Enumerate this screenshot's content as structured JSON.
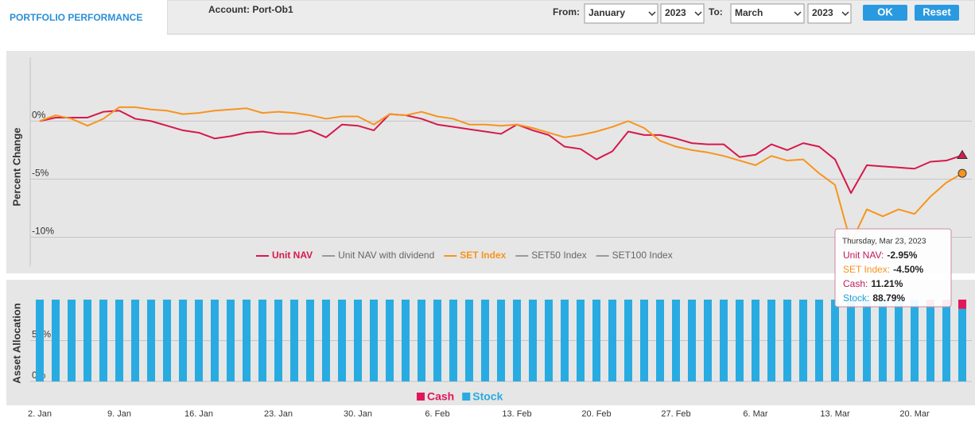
{
  "header": {
    "tab": "PORTFOLIO PERFORMANCE",
    "account": "Account: Port-Ob1",
    "from_label": "From:",
    "from_month": "January",
    "from_year": "2023",
    "to_label": "To:",
    "to_month": "March",
    "to_year": "2023",
    "ok": "OK",
    "reset": "Reset"
  },
  "chart_data": [
    {
      "type": "line",
      "y_label": "Percent Change",
      "ylim": [
        -12.5,
        5.5
      ],
      "yticks": [
        {
          "value": -10,
          "label": "-10%"
        },
        {
          "value": -5,
          "label": "-5%"
        },
        {
          "value": 0,
          "label": "0%"
        }
      ],
      "grid": true,
      "series": [
        {
          "name": "Unit NAV",
          "color": "#d6194b",
          "marker": "triangle",
          "values": [
            0,
            0.3,
            0.3,
            0.3,
            0.8,
            0.9,
            0.2,
            0.0,
            -0.4,
            -0.8,
            -1.0,
            -1.5,
            -1.3,
            -1.0,
            -0.9,
            -1.1,
            -1.1,
            -0.8,
            -1.4,
            -0.3,
            -0.4,
            -0.8,
            0.6,
            0.5,
            0.2,
            -0.3,
            -0.5,
            -0.7,
            -0.9,
            -1.1,
            -0.3,
            -0.8,
            -1.2,
            -2.2,
            -2.4,
            -3.3,
            -2.6,
            -0.9,
            -1.2,
            -1.2,
            -1.5,
            -1.9,
            -2.0,
            -2.0,
            -3.1,
            -2.9,
            -2.0,
            -2.5,
            -1.9,
            -2.2,
            -3.3,
            -6.2,
            -3.8,
            -3.9,
            -4.0,
            -4.1,
            -3.5,
            -3.4,
            -2.95
          ]
        },
        {
          "name": "Unit NAV with dividend",
          "color": "#999999",
          "hidden": true
        },
        {
          "name": "SET Index",
          "color": "#f7941d",
          "marker": "circle",
          "values": [
            0,
            0.5,
            0.2,
            -0.4,
            0.2,
            1.2,
            1.2,
            1.0,
            0.9,
            0.6,
            0.7,
            0.9,
            1.0,
            1.1,
            0.7,
            0.8,
            0.7,
            0.5,
            0.2,
            0.4,
            0.4,
            -0.3,
            0.6,
            0.5,
            0.8,
            0.4,
            0.2,
            -0.3,
            -0.3,
            -0.4,
            -0.3,
            -0.6,
            -1.0,
            -1.4,
            -1.2,
            -0.9,
            -0.5,
            0.0,
            -0.6,
            -1.7,
            -2.2,
            -2.5,
            -2.7,
            -3.0,
            -3.4,
            -3.8,
            -3.0,
            -3.4,
            -3.3,
            -4.5,
            -5.5,
            -10.5,
            -7.6,
            -8.2,
            -7.6,
            -8.0,
            -6.5,
            -5.3,
            -4.5
          ]
        },
        {
          "name": "SET50 Index",
          "color": "#999999",
          "hidden": true
        },
        {
          "name": "SET100 Index",
          "color": "#999999",
          "hidden": true
        }
      ]
    },
    {
      "type": "stacked_bar",
      "y_label": "Asset Allocation",
      "ylim": [
        0,
        100
      ],
      "yticks": [
        {
          "value": 0,
          "label": "0%"
        },
        {
          "value": 50,
          "label": "50%"
        }
      ],
      "categories": [
        "2. Jan",
        null,
        null,
        null,
        null,
        "9. Jan",
        null,
        null,
        null,
        null,
        "16. Jan",
        null,
        null,
        null,
        null,
        "23. Jan",
        null,
        null,
        null,
        null,
        "30. Jan",
        null,
        null,
        null,
        null,
        "6. Feb",
        null,
        null,
        null,
        null,
        "13. Feb",
        null,
        null,
        null,
        null,
        "20. Feb",
        null,
        null,
        null,
        null,
        "27. Feb",
        null,
        null,
        null,
        null,
        "6. Mar",
        null,
        null,
        null,
        null,
        "13. Mar",
        null,
        null,
        null,
        null,
        "20. Mar",
        null,
        null,
        null
      ],
      "series": [
        {
          "name": "Cash",
          "color": "#e0175a",
          "values": [
            0,
            0,
            0,
            0,
            0,
            0,
            0,
            0,
            0,
            0,
            0,
            0,
            0,
            0,
            0,
            0,
            0,
            0,
            0,
            0,
            0,
            0,
            0,
            0,
            0,
            0,
            0,
            0,
            0,
            0,
            0,
            0,
            0,
            0,
            0,
            0,
            0,
            0,
            0,
            0,
            0,
            0,
            0,
            0,
            0,
            0,
            0,
            0,
            0,
            0,
            0,
            0,
            0,
            0,
            0,
            0,
            9,
            9,
            11.21
          ]
        },
        {
          "name": "Stock",
          "color": "#29abe2",
          "values": [
            100,
            100,
            100,
            100,
            100,
            100,
            100,
            100,
            100,
            100,
            100,
            100,
            100,
            100,
            100,
            100,
            100,
            100,
            100,
            100,
            100,
            100,
            100,
            100,
            100,
            100,
            100,
            100,
            100,
            100,
            100,
            100,
            100,
            100,
            100,
            100,
            100,
            100,
            100,
            100,
            100,
            100,
            100,
            100,
            100,
            100,
            100,
            100,
            100,
            100,
            100,
            100,
            100,
            100,
            100,
            100,
            91,
            91,
            88.79
          ]
        }
      ]
    }
  ],
  "tooltip": {
    "date": "Thursday, Mar 23, 2023",
    "items": [
      {
        "label": "Unit NAV:",
        "value": "-2.95%",
        "color": "#c2185b"
      },
      {
        "label": "SET Index:",
        "value": "-4.50%",
        "color": "#f7941d"
      },
      {
        "label": "Cash:",
        "value": "11.21%",
        "color": "#c2185b"
      },
      {
        "label": "Stock:",
        "value": "88.79%",
        "color": "#1e9fd8"
      }
    ]
  }
}
